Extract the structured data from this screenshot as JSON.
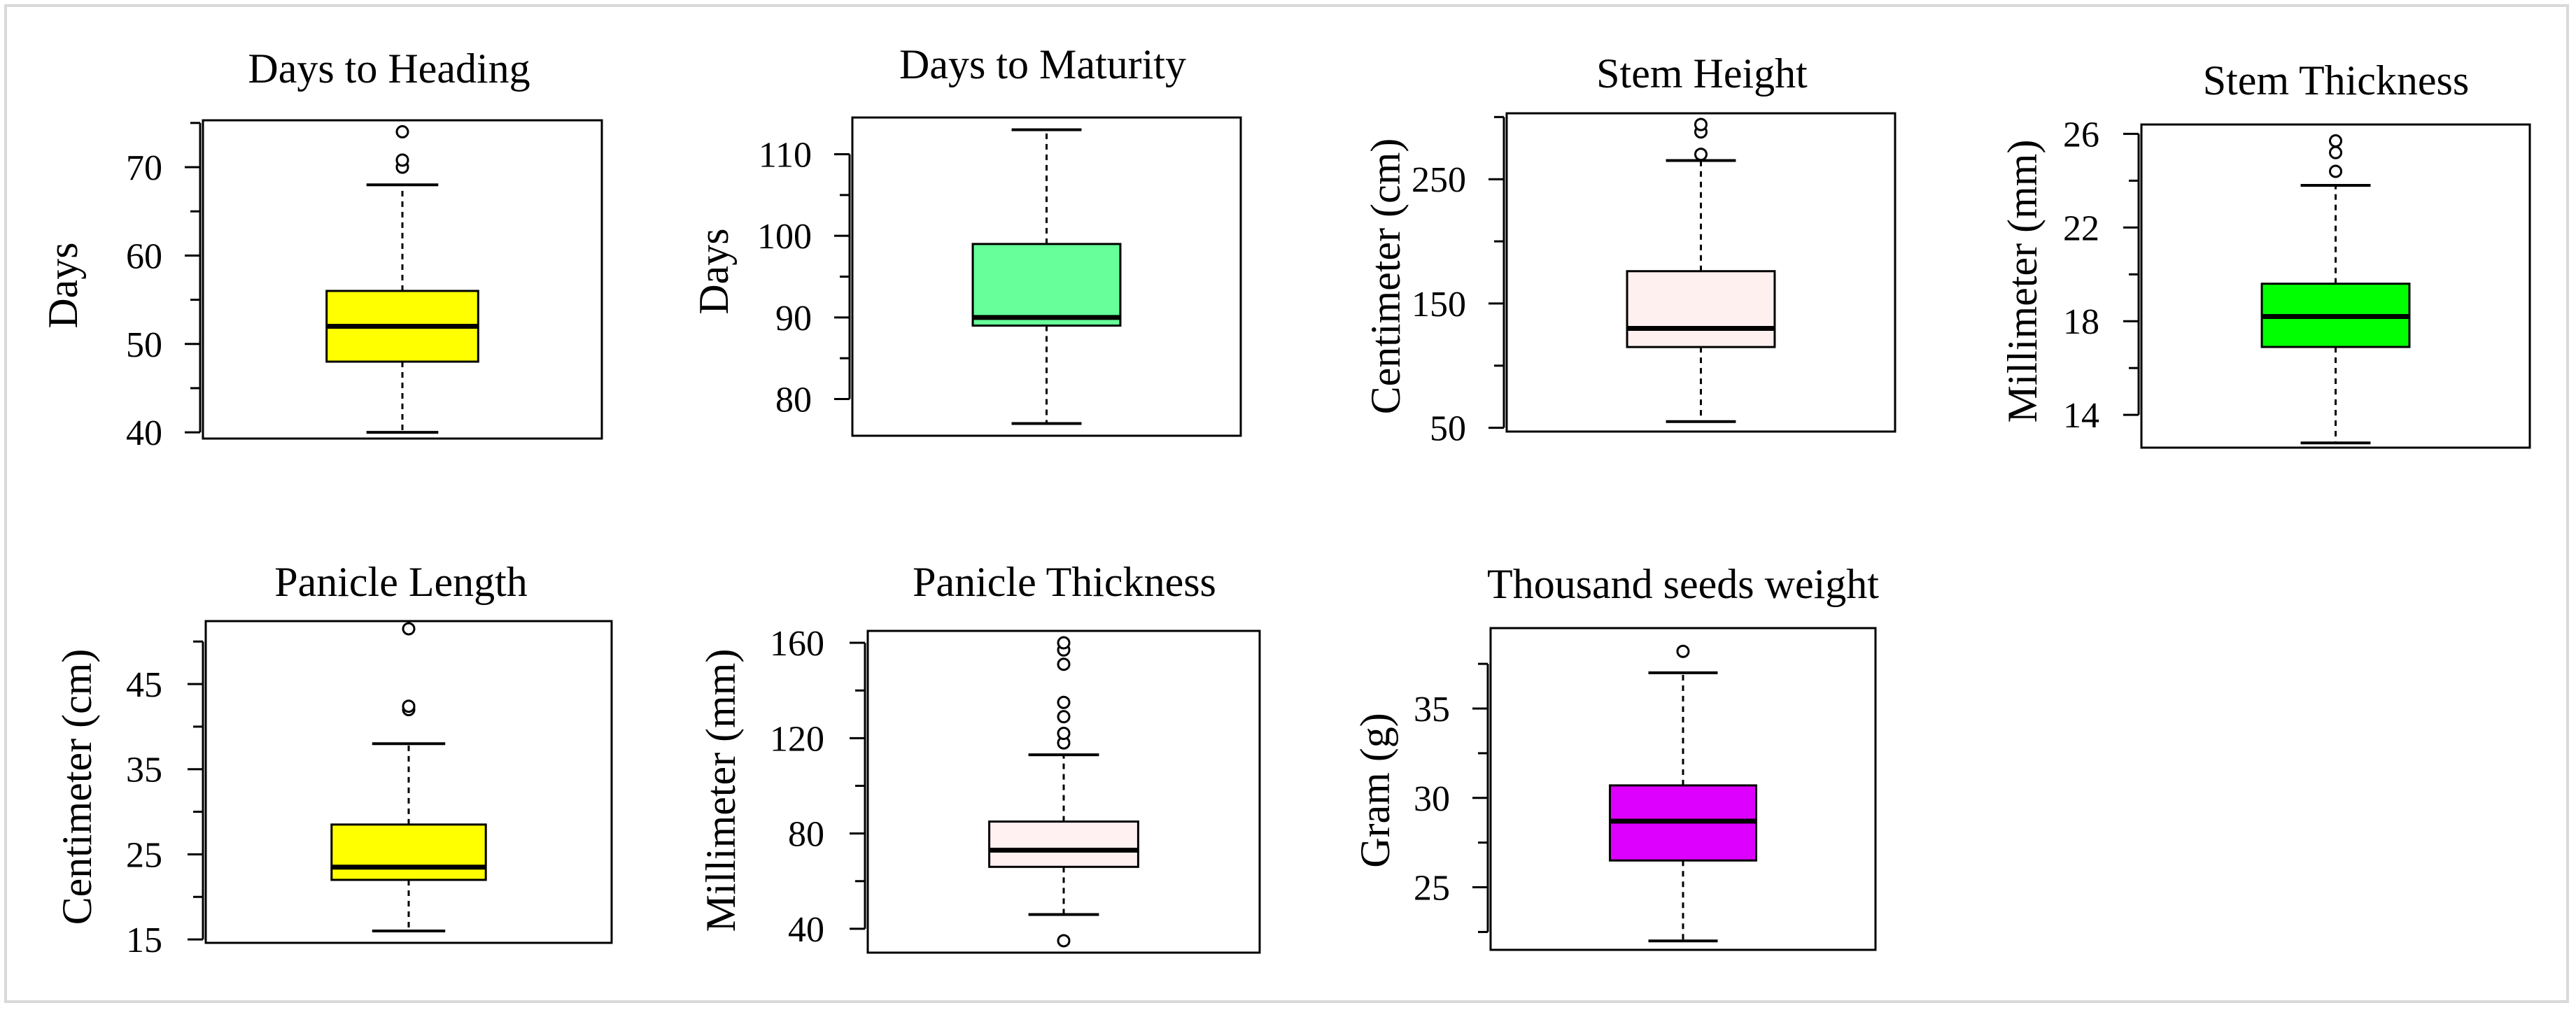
{
  "chart_data": [
    {
      "type": "box",
      "title": "Days to Heading",
      "ylabel": "Days",
      "ylim": [
        39.3,
        75.3
      ],
      "ticks": [
        40,
        50,
        60,
        70
      ],
      "minor_ticks": [
        45,
        55,
        65,
        75
      ],
      "box": {
        "whisker_low": 40,
        "q1": 48,
        "median": 52,
        "q3": 56,
        "whisker_high": 68
      },
      "outliers": [
        70,
        70.8,
        74
      ],
      "fill_color": "#ffff00",
      "median_color": "#000000"
    },
    {
      "type": "box",
      "title": "Days to Maturity",
      "ylabel": "Days",
      "ylim": [
        75.5,
        114.5
      ],
      "ticks": [
        80,
        90,
        100,
        110
      ],
      "minor_ticks": [
        85,
        95,
        105
      ],
      "box": {
        "whisker_low": 77,
        "q1": 89,
        "median": 90,
        "q3": 99,
        "whisker_high": 113
      },
      "outliers": [],
      "fill_color": "#66ff99",
      "median_color": "#000000"
    },
    {
      "type": "box",
      "title": "Stem Height",
      "ylabel": "Centimeter (cm)",
      "ylim": [
        47,
        303
      ],
      "ticks": [
        50,
        150,
        250
      ],
      "minor_ticks": [
        100,
        200,
        300
      ],
      "box": {
        "whisker_low": 55,
        "q1": 115,
        "median": 130,
        "q3": 176,
        "whisker_high": 265
      },
      "outliers": [
        270,
        288,
        294
      ],
      "fill_color": "#fff0f0",
      "median_color": "#000000"
    },
    {
      "type": "box",
      "title": "Stem Thickness",
      "ylabel": "Millimeter (mm)",
      "ylim": [
        12.6,
        26.4
      ],
      "ticks": [
        14,
        18,
        22,
        26
      ],
      "minor_ticks": [
        16,
        20,
        24
      ],
      "box": {
        "whisker_low": 12.8,
        "q1": 16.9,
        "median": 18.2,
        "q3": 19.6,
        "whisker_high": 23.8
      },
      "outliers": [
        24.4,
        25.2,
        25.7
      ],
      "fill_color": "#00ff00",
      "median_color": "#000000"
    },
    {
      "type": "box",
      "title": "Panicle Length",
      "ylabel": "Centimeter (cm)",
      "ylim": [
        14.6,
        52.4
      ],
      "ticks": [
        15,
        25,
        35,
        45
      ],
      "minor_ticks": [
        20,
        30,
        40,
        50
      ],
      "box": {
        "whisker_low": 16,
        "q1": 22,
        "median": 23.5,
        "q3": 28.5,
        "whisker_high": 38
      },
      "outliers": [
        42,
        42.4,
        51.5
      ],
      "fill_color": "#ffff00",
      "median_color": "#000000"
    },
    {
      "type": "box",
      "title": "Panicle Thickness",
      "ylabel": "Millimeter (mm)",
      "ylim": [
        30,
        165
      ],
      "ticks": [
        40,
        80,
        120,
        160
      ],
      "minor_ticks": [
        60,
        100,
        140
      ],
      "box": {
        "whisker_low": 46,
        "q1": 66,
        "median": 73,
        "q3": 85,
        "whisker_high": 113
      },
      "outliers": [
        35,
        118,
        122,
        129,
        135,
        151,
        157,
        160
      ],
      "fill_color": "#fff0f2",
      "median_color": "#000000"
    },
    {
      "type": "box",
      "title": "Thousand seeds weight",
      "ylabel": "Gram (g)",
      "ylim": [
        21.5,
        39.5
      ],
      "ticks": [
        25,
        30,
        35
      ],
      "minor_ticks": [
        22.5,
        27.5,
        32.5,
        37.5
      ],
      "box": {
        "whisker_low": 22,
        "q1": 26.5,
        "median": 28.7,
        "q3": 30.7,
        "whisker_high": 37
      },
      "outliers": [
        38.2
      ],
      "fill_color": "#dd00ff",
      "median_color": "#000000"
    }
  ]
}
